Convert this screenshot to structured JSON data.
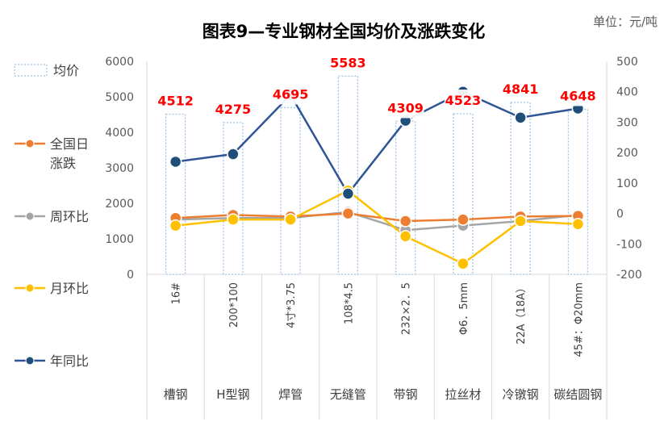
{
  "chart_data": {
    "type": "bar+line",
    "title": "图表9—专业钢材全国均价及涨跌变化",
    "unit": "单位：元/吨",
    "categories": [
      "槽钢",
      "H型钢",
      "焊管",
      "无缝管",
      "带钢",
      "拉丝材",
      "冷镦钢",
      "碳结圆钢"
    ],
    "specs": [
      "16#",
      "200*100",
      "4寸*3.75",
      "108*4.5",
      "232×2．5",
      "Φ6．5mm",
      "22A（18A）",
      "45#：Φ20mm"
    ],
    "left_axis": {
      "min": 0,
      "max": 6000,
      "step": 1000,
      "ticks": [
        "0",
        "1000",
        "2000",
        "3000",
        "4000",
        "5000",
        "6000"
      ]
    },
    "right_axis": {
      "min": -200,
      "max": 500,
      "step": 100,
      "ticks": [
        "-200",
        "-100",
        "0",
        "100",
        "200",
        "300",
        "400",
        "500"
      ]
    },
    "bar_series": {
      "name": "均价",
      "axis": "left",
      "values": [
        4512,
        4275,
        4695,
        5583,
        4309,
        4523,
        4841,
        4648
      ],
      "labels": [
        "4512",
        "4275",
        "4695",
        "5583",
        "4309",
        "4523",
        "4841",
        "4648"
      ]
    },
    "series": [
      {
        "name": "全国日涨跌",
        "axis": "right",
        "color": "#ed7d31",
        "values": [
          -15,
          -5,
          -10,
          0,
          -25,
          -20,
          -10,
          -8
        ]
      },
      {
        "name": "周环比",
        "axis": "right",
        "color": "#a5a5a5",
        "values": [
          -20,
          -15,
          -15,
          5,
          -55,
          -40,
          -25,
          -5
        ]
      },
      {
        "name": "月环比",
        "axis": "right",
        "color": "#ffc000",
        "values": [
          -40,
          -20,
          -20,
          75,
          -75,
          -165,
          -25,
          -35
        ]
      },
      {
        "name": "年同比",
        "axis": "right",
        "color": "#2f5597",
        "values": [
          170,
          195,
          390,
          65,
          305,
          400,
          315,
          345
        ]
      }
    ],
    "legend": [
      "均价",
      "全国日涨跌",
      "周环比",
      "月环比",
      "年同比"
    ],
    "legend_position": "left",
    "grid": false
  }
}
